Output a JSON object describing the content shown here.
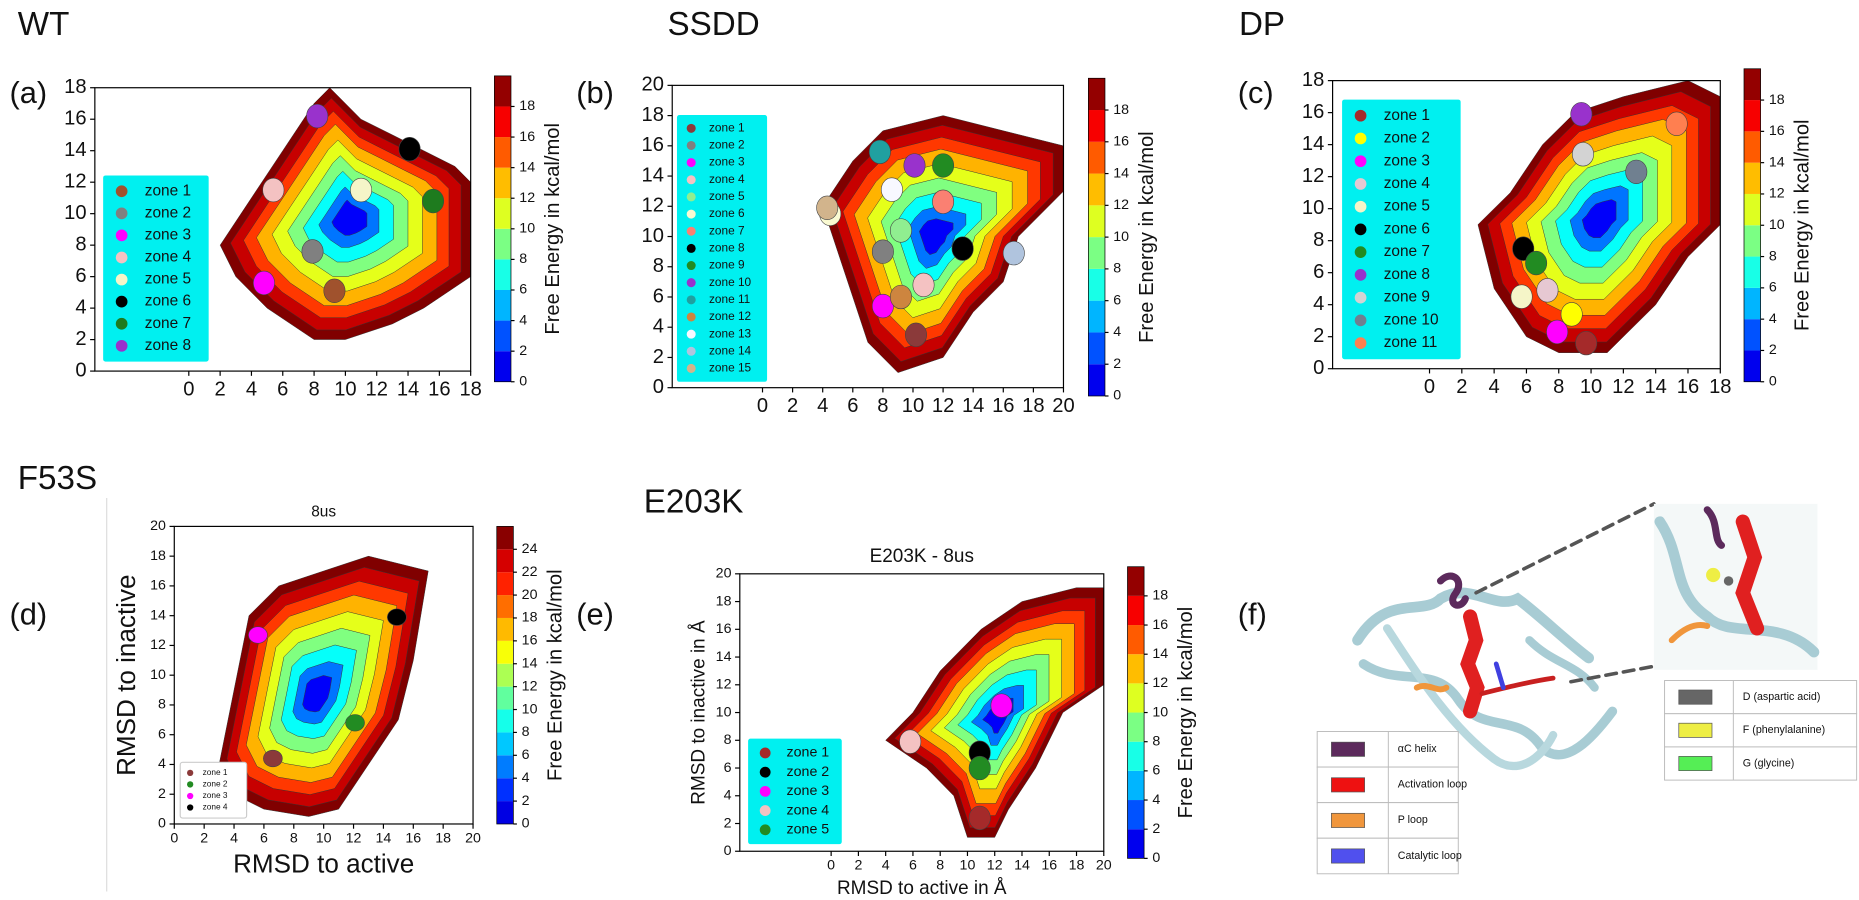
{
  "chart_data": [
    {
      "type": "contour",
      "heading": "WT",
      "panel_label": "(a)",
      "xlim": [
        -6,
        18
      ],
      "ylim": [
        0,
        18
      ],
      "xticks": [
        0,
        2,
        4,
        6,
        8,
        10,
        12,
        14,
        16,
        18
      ],
      "yticks": [
        0,
        2,
        4,
        6,
        8,
        10,
        12,
        14,
        16,
        18
      ],
      "colorbar": {
        "label": "Free Energy in kcal/mol",
        "lim": [
          0,
          20
        ],
        "ticks": [
          0,
          2,
          4,
          6,
          8,
          10,
          12,
          14,
          16,
          18
        ]
      },
      "series": [
        {
          "name": "zone 1",
          "color": "#a0522d",
          "x": [
            9.3
          ],
          "y": [
            5.1
          ]
        },
        {
          "name": "zone 2",
          "color": "#808080",
          "x": [
            7.9
          ],
          "y": [
            7.6
          ]
        },
        {
          "name": "zone 3",
          "color": "#ff00ff",
          "x": [
            4.8
          ],
          "y": [
            5.6
          ]
        },
        {
          "name": "zone 4",
          "color": "#f4c2c2",
          "x": [
            5.4
          ],
          "y": [
            11.5
          ]
        },
        {
          "name": "zone 5",
          "color": "#f5f5c8",
          "x": [
            11.0
          ],
          "y": [
            11.5
          ]
        },
        {
          "name": "zone 6",
          "color": "#000000",
          "x": [
            14.1
          ],
          "y": [
            14.1
          ]
        },
        {
          "name": "zone 7",
          "color": "#1e7b1e",
          "x": [
            15.6
          ],
          "y": [
            10.8
          ]
        },
        {
          "name": "zone 8",
          "color": "#9932cc",
          "x": [
            8.2
          ],
          "y": [
            16.2
          ]
        }
      ]
    },
    {
      "type": "contour",
      "heading": "SSDD",
      "panel_label": "(b)",
      "xlim": [
        -6,
        20
      ],
      "ylim": [
        0,
        20
      ],
      "xticks": [
        0,
        2,
        4,
        6,
        8,
        10,
        12,
        14,
        16,
        18,
        20
      ],
      "yticks": [
        0,
        2,
        4,
        6,
        8,
        10,
        12,
        14,
        16,
        18,
        20
      ],
      "colorbar": {
        "label": "Free Energy in kcal/mol",
        "lim": [
          0,
          20
        ],
        "ticks": [
          0,
          2,
          4,
          6,
          8,
          10,
          12,
          14,
          16,
          18
        ]
      },
      "series": [
        {
          "name": "zone 1",
          "color": "#8b3a3a",
          "x": [
            10.2
          ],
          "y": [
            3.5
          ]
        },
        {
          "name": "zone 2",
          "color": "#808080",
          "x": [
            8.0
          ],
          "y": [
            9.0
          ]
        },
        {
          "name": "zone 3",
          "color": "#ff00ff",
          "x": [
            8.0
          ],
          "y": [
            5.4
          ]
        },
        {
          "name": "zone 4",
          "color": "#f4c2c2",
          "x": [
            10.7
          ],
          "y": [
            6.8
          ]
        },
        {
          "name": "zone 5",
          "color": "#90ee90",
          "x": [
            9.2
          ],
          "y": [
            10.4
          ]
        },
        {
          "name": "zone 6",
          "color": "#fafad2",
          "x": [
            4.5
          ],
          "y": [
            11.5
          ]
        },
        {
          "name": "zone 7",
          "color": "#fa8072",
          "x": [
            12.0
          ],
          "y": [
            12.3
          ]
        },
        {
          "name": "zone 8",
          "color": "#000000",
          "x": [
            13.3
          ],
          "y": [
            9.2
          ]
        },
        {
          "name": "zone 9",
          "color": "#228b22",
          "x": [
            12.0
          ],
          "y": [
            14.7
          ]
        },
        {
          "name": "zone 10",
          "color": "#9932cc",
          "x": [
            10.1
          ],
          "y": [
            14.7
          ]
        },
        {
          "name": "zone 11",
          "color": "#20a0a0",
          "x": [
            7.8
          ],
          "y": [
            15.6
          ]
        },
        {
          "name": "zone 12",
          "color": "#cd853f",
          "x": [
            9.2
          ],
          "y": [
            6.0
          ]
        },
        {
          "name": "zone 13",
          "color": "#f8f8ff",
          "x": [
            8.6
          ],
          "y": [
            13.1
          ]
        },
        {
          "name": "zone 14",
          "color": "#b0c4de",
          "x": [
            16.7
          ],
          "y": [
            8.9
          ]
        },
        {
          "name": "zone 15",
          "color": "#d2b48c",
          "x": [
            4.3
          ],
          "y": [
            11.9
          ]
        }
      ]
    },
    {
      "type": "contour",
      "heading": "DP",
      "panel_label": "(c)",
      "xlim": [
        -6,
        18
      ],
      "ylim": [
        0,
        18
      ],
      "xticks": [
        0,
        2,
        4,
        6,
        8,
        10,
        12,
        14,
        16,
        18
      ],
      "yticks": [
        0,
        2,
        4,
        6,
        8,
        10,
        12,
        14,
        16,
        18
      ],
      "colorbar": {
        "label": "Free Energy in kcal/mol",
        "lim": [
          0,
          20
        ],
        "ticks": [
          0,
          2,
          4,
          6,
          8,
          10,
          12,
          14,
          16,
          18
        ]
      },
      "series": [
        {
          "name": "zone 1",
          "color": "#a52a2a",
          "x": [
            9.7
          ],
          "y": [
            1.6
          ]
        },
        {
          "name": "zone 2",
          "color": "#ffff00",
          "x": [
            8.8
          ],
          "y": [
            3.4
          ]
        },
        {
          "name": "zone 3",
          "color": "#ff00ff",
          "x": [
            7.9
          ],
          "y": [
            2.3
          ]
        },
        {
          "name": "zone 4",
          "color": "#e6c8d2",
          "x": [
            7.3
          ],
          "y": [
            4.9
          ]
        },
        {
          "name": "zone 5",
          "color": "#f5f5c8",
          "x": [
            5.7
          ],
          "y": [
            4.5
          ]
        },
        {
          "name": "zone 6",
          "color": "#000000",
          "x": [
            5.8
          ],
          "y": [
            7.5
          ]
        },
        {
          "name": "zone 7",
          "color": "#228b22",
          "x": [
            6.6
          ],
          "y": [
            6.6
          ]
        },
        {
          "name": "zone 8",
          "color": "#9932cc",
          "x": [
            9.4
          ],
          "y": [
            15.9
          ]
        },
        {
          "name": "zone 9",
          "color": "#d3d3d3",
          "x": [
            9.5
          ],
          "y": [
            13.4
          ]
        },
        {
          "name": "zone 10",
          "color": "#708090",
          "x": [
            12.8
          ],
          "y": [
            12.3
          ]
        },
        {
          "name": "zone 11",
          "color": "#ff7f50",
          "x": [
            15.3
          ],
          "y": [
            15.3
          ]
        }
      ]
    },
    {
      "type": "contour",
      "heading": "F53S",
      "panel_label": "(d)",
      "title": "8us",
      "x_label": "RMSD to active",
      "y_label": "RMSD to inactive",
      "xlim": [
        0,
        20
      ],
      "ylim": [
        0,
        20
      ],
      "xticks": [
        0,
        2,
        4,
        6,
        8,
        10,
        12,
        14,
        16,
        18,
        20
      ],
      "yticks": [
        0,
        2,
        4,
        6,
        8,
        10,
        12,
        14,
        16,
        18,
        20
      ],
      "colorbar": {
        "label": "Free Energy in kcal/mol",
        "lim": [
          0,
          26
        ],
        "ticks": [
          0,
          2,
          4,
          6,
          8,
          10,
          12,
          14,
          16,
          18,
          20,
          22,
          24
        ]
      },
      "series": [
        {
          "name": "zone 1",
          "color": "#8b3a3a",
          "x": [
            6.6
          ],
          "y": [
            4.4
          ]
        },
        {
          "name": "zone 2",
          "color": "#228b22",
          "x": [
            12.1
          ],
          "y": [
            6.8
          ]
        },
        {
          "name": "zone 3",
          "color": "#ff00ff",
          "x": [
            5.6
          ],
          "y": [
            12.7
          ]
        },
        {
          "name": "zone 4",
          "color": "#000000",
          "x": [
            14.9
          ],
          "y": [
            13.9
          ]
        }
      ]
    },
    {
      "type": "contour",
      "heading": "E203K",
      "panel_label": "(e)",
      "title": "E203K - 8us",
      "x_label": "RMSD to active in Å",
      "y_label": "RMSD to inactive in Å",
      "xlim": [
        -6.7,
        20
      ],
      "ylim": [
        0,
        20
      ],
      "xticks": [
        0,
        2,
        4,
        6,
        8,
        10,
        12,
        14,
        16,
        18,
        20
      ],
      "yticks": [
        0,
        2,
        4,
        6,
        8,
        10,
        12,
        14,
        16,
        18,
        20
      ],
      "colorbar": {
        "label": "Free Energy in kcal/mol",
        "lim": [
          0,
          20
        ],
        "ticks": [
          0,
          2,
          4,
          6,
          8,
          10,
          12,
          14,
          16,
          18
        ]
      },
      "series": [
        {
          "name": "zone 1",
          "color": "#a52a2a",
          "x": [
            10.9
          ],
          "y": [
            2.4
          ]
        },
        {
          "name": "zone 2",
          "color": "#000000",
          "x": [
            10.9
          ],
          "y": [
            7.1
          ]
        },
        {
          "name": "zone 3",
          "color": "#ff00ff",
          "x": [
            12.5
          ],
          "y": [
            10.5
          ]
        },
        {
          "name": "zone 4",
          "color": "#f4c2c2",
          "x": [
            5.8
          ],
          "y": [
            7.9
          ]
        },
        {
          "name": "zone 5",
          "color": "#228b22",
          "x": [
            10.9
          ],
          "y": [
            6.0
          ]
        }
      ]
    }
  ],
  "panel_f": {
    "panel_label": "(f)",
    "legend_left": [
      {
        "name": "αC helix",
        "color": "#5c2a5c"
      },
      {
        "name": "Activation loop",
        "color": "#ee1111"
      },
      {
        "name": "P loop",
        "color": "#f0963c"
      },
      {
        "name": "Catalytic loop",
        "color": "#5050ee"
      }
    ],
    "legend_right": [
      {
        "name": "D (aspartic acid)",
        "color": "#666666"
      },
      {
        "name": "F (phenylalanine)",
        "color": "#eeee44"
      },
      {
        "name": "G (glycine)",
        "color": "#55ee55"
      }
    ]
  }
}
